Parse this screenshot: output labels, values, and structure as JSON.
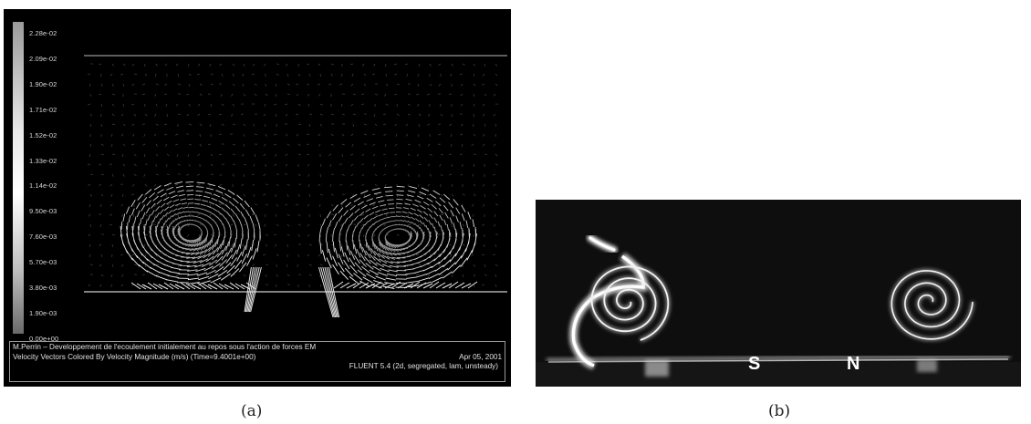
{
  "panel_a": {
    "colorbar_labels": [
      "2.28e-02",
      "2.09e-02",
      "1.90e-02",
      "1.71e-02",
      "1.52e-02",
      "1.33e-02",
      "1.14e-02",
      "9.50e-03",
      "7.60e-03",
      "5.70e-03",
      "3.80e-03",
      "1.90e-03",
      "0.00e+00"
    ],
    "footer": {
      "line1": "M.Perrin – Developpement de l'ecoulement initialement au repos sous l'action de forces EM",
      "line2_left": "Velocity Vectors Colored By Velocity Magnitude (m/s)  (Time=9.4001e+00)",
      "line2_right": "Apr 05, 2001",
      "line3": "FLUENT 5.4 (2d, segregated, lam, unsteady)"
    }
  },
  "panel_b": {
    "pole_s": "S",
    "pole_n": "N"
  },
  "captions": {
    "a": "(a)",
    "b": "(b)"
  }
}
